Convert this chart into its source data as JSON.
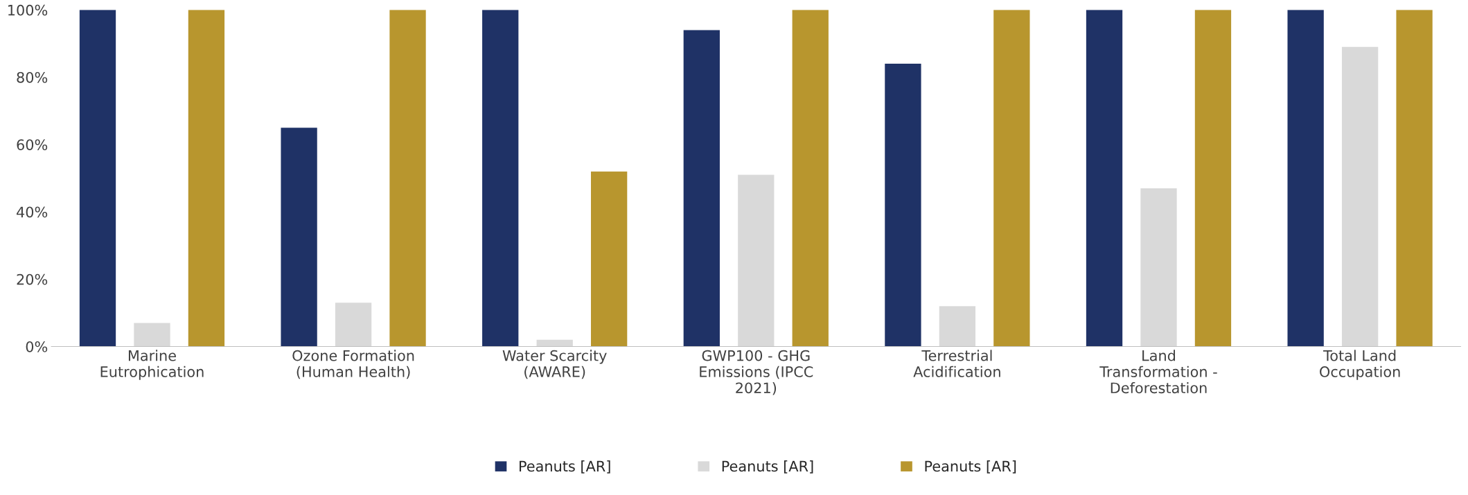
{
  "chart_data": {
    "type": "bar",
    "categories": [
      "Marine\nEutrophication",
      "Ozone Formation\n(Human Health)",
      "Water Scarcity\n(AWARE)",
      "GWP100 - GHG\nEmissions (IPCC\n2021)",
      "Terrestrial\nAcidification",
      "Land\nTransformation -\nDeforestation",
      "Total Land\nOccupation"
    ],
    "series": [
      {
        "name": "Peanuts [AR]",
        "color": "#1f3266",
        "values": [
          100,
          65,
          100,
          94,
          84,
          100,
          100
        ]
      },
      {
        "name": "Peanuts [AR]",
        "color": "#d9d9d9",
        "values": [
          7,
          13,
          2,
          51,
          12,
          47,
          89
        ]
      },
      {
        "name": "Peanuts [AR]",
        "color": "#b8962e",
        "values": [
          100,
          100,
          52,
          100,
          100,
          100,
          100
        ]
      }
    ],
    "ylim": [
      0,
      100
    ],
    "yticks": [
      {
        "value": 0,
        "label": "0%"
      },
      {
        "value": 20,
        "label": "20%"
      },
      {
        "value": 40,
        "label": "40%"
      },
      {
        "value": 60,
        "label": "60%"
      },
      {
        "value": 80,
        "label": "80%"
      },
      {
        "value": 100,
        "label": "100%"
      }
    ],
    "legend": "bottom"
  }
}
